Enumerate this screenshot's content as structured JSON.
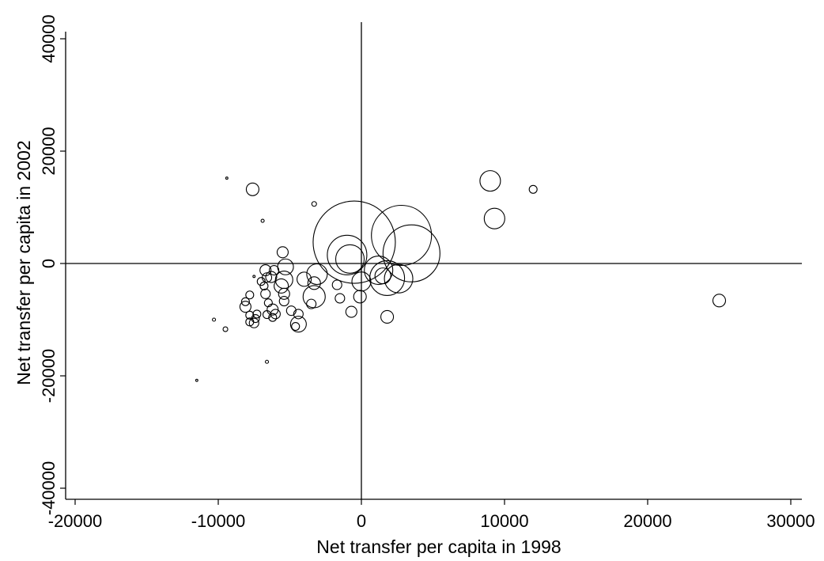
{
  "chart_data": {
    "type": "scatter",
    "title": "",
    "xlabel": "Net transfer per capita in 1998",
    "ylabel": "Net transfer per capita in 2002",
    "xlim": [
      -20000,
      30000
    ],
    "ylim": [
      -40000,
      40000
    ],
    "xticks": [
      -20000,
      -10000,
      0,
      10000,
      20000,
      30000
    ],
    "yticks": [
      -40000,
      -20000,
      0,
      20000,
      40000
    ],
    "xtick_labels": [
      "-20000",
      "-10000",
      "0",
      "10000",
      "20000",
      "30000"
    ],
    "ytick_labels": [
      "-40000",
      "-20000",
      "0",
      "20000",
      "40000"
    ],
    "reference_lines": {
      "x": 0,
      "y": 0
    },
    "marker": "hollow circle, size proportional to weight",
    "grid": false,
    "legend": "none",
    "points": [
      {
        "x": -9400,
        "y": 15200,
        "s": 1
      },
      {
        "x": -7600,
        "y": 13200,
        "s": 8
      },
      {
        "x": -6900,
        "y": 7600,
        "s": 2
      },
      {
        "x": -3300,
        "y": 10600,
        "s": 3
      },
      {
        "x": 9000,
        "y": 14700,
        "s": 13
      },
      {
        "x": 12000,
        "y": 13200,
        "s": 5
      },
      {
        "x": 9300,
        "y": 8000,
        "s": 13
      },
      {
        "x": -500,
        "y": 3800,
        "s": 52
      },
      {
        "x": 2800,
        "y": 5000,
        "s": 38
      },
      {
        "x": 3500,
        "y": 1800,
        "s": 36
      },
      {
        "x": -1000,
        "y": 1500,
        "s": 25
      },
      {
        "x": -800,
        "y": 800,
        "s": 18
      },
      {
        "x": 1200,
        "y": -1200,
        "s": 18
      },
      {
        "x": 1800,
        "y": -2600,
        "s": 22
      },
      {
        "x": 2600,
        "y": -2700,
        "s": 18
      },
      {
        "x": 0,
        "y": -3200,
        "s": 12
      },
      {
        "x": 1500,
        "y": -2200,
        "s": 10
      },
      {
        "x": -100,
        "y": -5900,
        "s": 8
      },
      {
        "x": 1800,
        "y": -9500,
        "s": 8
      },
      {
        "x": -700,
        "y": -8600,
        "s": 7
      },
      {
        "x": -1500,
        "y": -6200,
        "s": 6
      },
      {
        "x": -1700,
        "y": -3800,
        "s": 6
      },
      {
        "x": 25000,
        "y": -6600,
        "s": 8
      },
      {
        "x": -3100,
        "y": -1900,
        "s": 13
      },
      {
        "x": -3300,
        "y": -5900,
        "s": 14
      },
      {
        "x": -3300,
        "y": -3500,
        "s": 8
      },
      {
        "x": -4000,
        "y": -2800,
        "s": 9
      },
      {
        "x": -3500,
        "y": -7200,
        "s": 6
      },
      {
        "x": -5300,
        "y": -600,
        "s": 10
      },
      {
        "x": -5500,
        "y": 2000,
        "s": 7
      },
      {
        "x": -5400,
        "y": -2900,
        "s": 11
      },
      {
        "x": -5600,
        "y": -4000,
        "s": 9
      },
      {
        "x": -5400,
        "y": -5400,
        "s": 7
      },
      {
        "x": -5400,
        "y": -6700,
        "s": 6
      },
      {
        "x": -6100,
        "y": -1200,
        "s": 6
      },
      {
        "x": -6300,
        "y": -2400,
        "s": 7
      },
      {
        "x": -6700,
        "y": -1200,
        "s": 7
      },
      {
        "x": -6600,
        "y": -2500,
        "s": 6
      },
      {
        "x": -7000,
        "y": -3200,
        "s": 5
      },
      {
        "x": -6800,
        "y": -4000,
        "s": 5
      },
      {
        "x": -6700,
        "y": -5400,
        "s": 6
      },
      {
        "x": -6500,
        "y": -7000,
        "s": 5
      },
      {
        "x": -6200,
        "y": -8200,
        "s": 7
      },
      {
        "x": -6000,
        "y": -9000,
        "s": 6
      },
      {
        "x": -6200,
        "y": -9600,
        "s": 5
      },
      {
        "x": -6600,
        "y": -9100,
        "s": 5
      },
      {
        "x": -4900,
        "y": -8400,
        "s": 6
      },
      {
        "x": -4400,
        "y": -9000,
        "s": 6
      },
      {
        "x": -4400,
        "y": -10800,
        "s": 10
      },
      {
        "x": -4600,
        "y": -11200,
        "s": 5
      },
      {
        "x": -7300,
        "y": -9000,
        "s": 5
      },
      {
        "x": -7400,
        "y": -9800,
        "s": 5
      },
      {
        "x": -7500,
        "y": -10600,
        "s": 6
      },
      {
        "x": -7800,
        "y": -10400,
        "s": 5
      },
      {
        "x": -7800,
        "y": -9200,
        "s": 5
      },
      {
        "x": -8100,
        "y": -7700,
        "s": 7
      },
      {
        "x": -8100,
        "y": -6800,
        "s": 5
      },
      {
        "x": -7800,
        "y": -5600,
        "s": 5
      },
      {
        "x": -7500,
        "y": -2300,
        "s": 1
      },
      {
        "x": -10300,
        "y": -10000,
        "s": 2
      },
      {
        "x": -9500,
        "y": -11700,
        "s": 3
      },
      {
        "x": -6600,
        "y": -17500,
        "s": 2
      },
      {
        "x": -11500,
        "y": -20800,
        "s": 1
      }
    ]
  }
}
